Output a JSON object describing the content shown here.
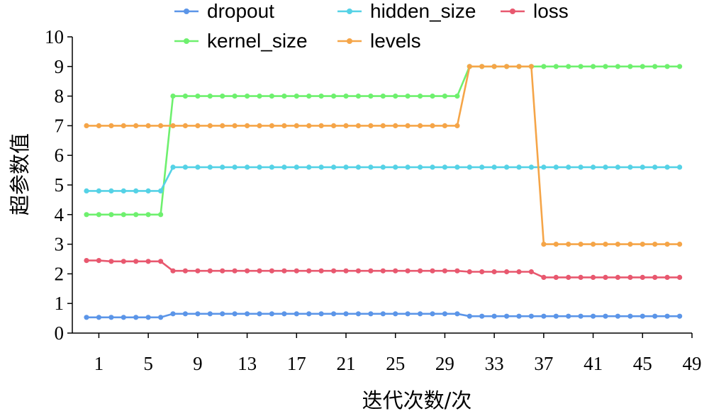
{
  "chart_data": {
    "type": "line",
    "title": "",
    "xlabel": "迭代次数/次",
    "ylabel": "超参数值",
    "ylim": [
      0,
      10
    ],
    "yticks": [
      "0",
      "1",
      "2",
      "3",
      "4",
      "5",
      "6",
      "7",
      "8",
      "9",
      "10"
    ],
    "xlim": [
      0,
      49
    ],
    "xticks": [
      "1",
      "5",
      "9",
      "13",
      "17",
      "21",
      "25",
      "29",
      "33",
      "37",
      "41",
      "45",
      "49"
    ],
    "legend_position": "top",
    "x": [
      0,
      1,
      2,
      3,
      4,
      5,
      6,
      7,
      8,
      9,
      10,
      11,
      12,
      13,
      14,
      15,
      16,
      17,
      18,
      19,
      20,
      21,
      22,
      23,
      24,
      25,
      26,
      27,
      28,
      29,
      30,
      31,
      32,
      33,
      34,
      35,
      36,
      37,
      38,
      39,
      40,
      41,
      42,
      43,
      44,
      45,
      46,
      47,
      48
    ],
    "series": [
      {
        "name": "dropout",
        "color": "#5b95e8",
        "values": [
          0.53,
          0.53,
          0.53,
          0.53,
          0.53,
          0.53,
          0.53,
          0.65,
          0.65,
          0.65,
          0.65,
          0.65,
          0.65,
          0.65,
          0.65,
          0.65,
          0.65,
          0.65,
          0.65,
          0.65,
          0.65,
          0.65,
          0.65,
          0.65,
          0.65,
          0.65,
          0.65,
          0.65,
          0.65,
          0.65,
          0.65,
          0.57,
          0.57,
          0.57,
          0.57,
          0.57,
          0.57,
          0.57,
          0.57,
          0.57,
          0.57,
          0.57,
          0.57,
          0.57,
          0.57,
          0.57,
          0.57,
          0.57,
          0.57
        ]
      },
      {
        "name": "hidden_size",
        "color": "#55d2e6",
        "values": [
          4.8,
          4.8,
          4.8,
          4.8,
          4.8,
          4.8,
          4.8,
          5.6,
          5.6,
          5.6,
          5.6,
          5.6,
          5.6,
          5.6,
          5.6,
          5.6,
          5.6,
          5.6,
          5.6,
          5.6,
          5.6,
          5.6,
          5.6,
          5.6,
          5.6,
          5.6,
          5.6,
          5.6,
          5.6,
          5.6,
          5.6,
          5.6,
          5.6,
          5.6,
          5.6,
          5.6,
          5.6,
          5.6,
          5.6,
          5.6,
          5.6,
          5.6,
          5.6,
          5.6,
          5.6,
          5.6,
          5.6,
          5.6,
          5.6
        ]
      },
      {
        "name": "loss",
        "color": "#e8586f",
        "values": [
          2.45,
          2.45,
          2.42,
          2.42,
          2.42,
          2.42,
          2.42,
          2.1,
          2.1,
          2.1,
          2.1,
          2.1,
          2.1,
          2.1,
          2.1,
          2.1,
          2.1,
          2.1,
          2.1,
          2.1,
          2.1,
          2.1,
          2.1,
          2.1,
          2.1,
          2.1,
          2.1,
          2.1,
          2.1,
          2.1,
          2.1,
          2.07,
          2.07,
          2.07,
          2.07,
          2.07,
          2.07,
          1.88,
          1.88,
          1.88,
          1.88,
          1.88,
          1.88,
          1.88,
          1.88,
          1.88,
          1.88,
          1.88,
          1.88
        ]
      },
      {
        "name": "kernel_size",
        "color": "#6ef06e",
        "values": [
          4,
          4,
          4,
          4,
          4,
          4,
          4,
          8,
          8,
          8,
          8,
          8,
          8,
          8,
          8,
          8,
          8,
          8,
          8,
          8,
          8,
          8,
          8,
          8,
          8,
          8,
          8,
          8,
          8,
          8,
          8,
          9,
          9,
          9,
          9,
          9,
          9,
          9,
          9,
          9,
          9,
          9,
          9,
          9,
          9,
          9,
          9,
          9,
          9
        ]
      },
      {
        "name": "levels",
        "color": "#f5a548",
        "values": [
          7,
          7,
          7,
          7,
          7,
          7,
          7,
          7,
          7,
          7,
          7,
          7,
          7,
          7,
          7,
          7,
          7,
          7,
          7,
          7,
          7,
          7,
          7,
          7,
          7,
          7,
          7,
          7,
          7,
          7,
          7,
          9,
          9,
          9,
          9,
          9,
          9,
          3,
          3,
          3,
          3,
          3,
          3,
          3,
          3,
          3,
          3,
          3,
          3
        ]
      }
    ]
  }
}
